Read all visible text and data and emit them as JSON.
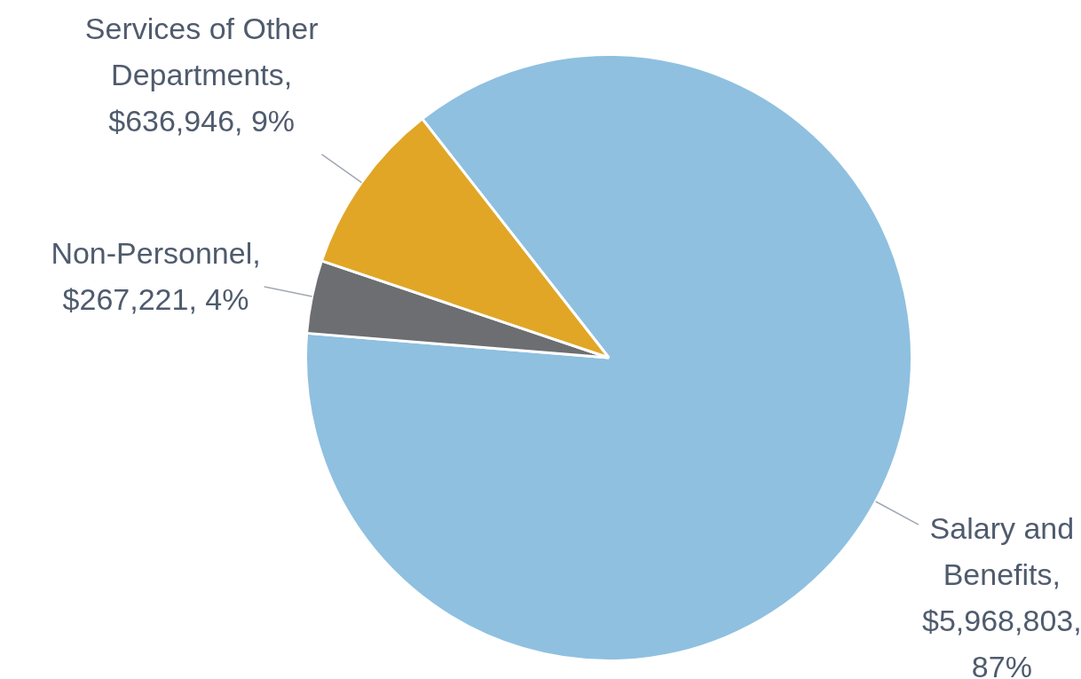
{
  "chart_data": {
    "type": "pie",
    "categories": [
      "Salary and Benefits",
      "Non-Personnel",
      "Services of Other Departments"
    ],
    "values": [
      5968803,
      267221,
      636946
    ],
    "colors": [
      "#8fc0e0",
      "#6d6e71",
      "#e1a626"
    ],
    "value_labels": [
      ", $5,968,803, 87%",
      ", $267,221, 4%",
      ", $636,946, 9%"
    ],
    "legend": false
  }
}
